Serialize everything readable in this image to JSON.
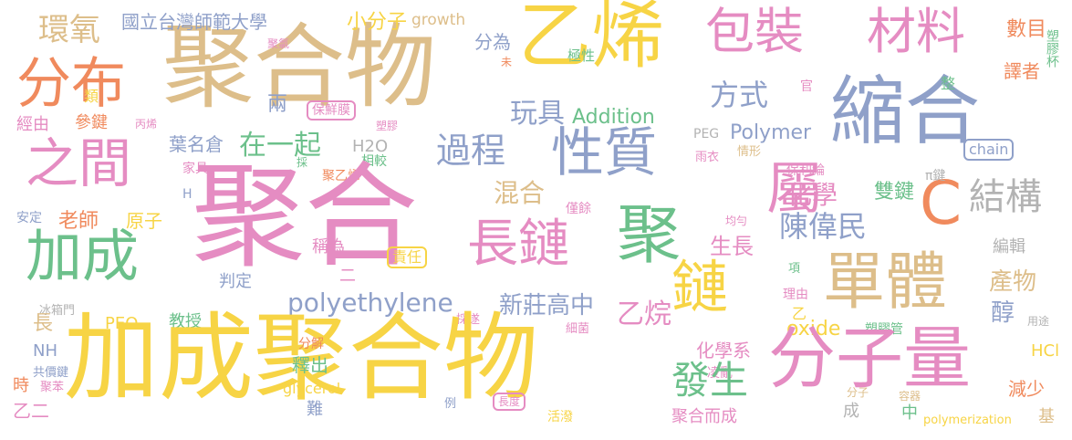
{
  "palette": {
    "yellow": "#F7D445",
    "pink": "#E58CC2",
    "tan": "#DDBE8A",
    "blue": "#8FA0C9",
    "green": "#6CC08B",
    "orange": "#F08A5D",
    "gray": "#B3B3B3"
  },
  "words": [
    {
      "text": "聚合物",
      "color": "tan"
    },
    {
      "text": "乙烯",
      "color": "yellow"
    },
    {
      "text": "包裝",
      "color": "pink"
    },
    {
      "text": "材料",
      "color": "pink"
    },
    {
      "text": "縮合",
      "color": "blue"
    },
    {
      "text": "分布",
      "color": "orange"
    },
    {
      "text": "環氧",
      "color": "tan"
    },
    {
      "text": "國立台灣師範大學",
      "color": "blue"
    },
    {
      "text": "小分子",
      "color": "yellow"
    },
    {
      "text": "growth",
      "color": "tan"
    },
    {
      "text": "分為",
      "color": "blue"
    },
    {
      "text": "數目",
      "color": "orange"
    },
    {
      "text": "塑膠杯",
      "color": "green"
    },
    {
      "text": "譯者",
      "color": "orange"
    },
    {
      "text": "聚氯",
      "color": "pink"
    },
    {
      "text": "未",
      "color": "orange"
    },
    {
      "text": "極性",
      "color": "green"
    },
    {
      "text": "方式",
      "color": "blue"
    },
    {
      "text": "玩具",
      "color": "blue"
    },
    {
      "text": "Addition",
      "color": "green"
    },
    {
      "text": "官",
      "color": "pink"
    },
    {
      "text": "整",
      "color": "green"
    },
    {
      "text": "類",
      "color": "yellow"
    },
    {
      "text": "兩",
      "color": "blue"
    },
    {
      "text": "保鮮膜",
      "color": "pink"
    },
    {
      "text": "經由",
      "color": "pink"
    },
    {
      "text": "參鍵",
      "color": "orange"
    },
    {
      "text": "丙烯",
      "color": "pink"
    },
    {
      "text": "塑膠",
      "color": "pink"
    },
    {
      "text": "之間",
      "color": "pink"
    },
    {
      "text": "過程",
      "color": "blue"
    },
    {
      "text": "性質",
      "color": "blue"
    },
    {
      "text": "Polymer",
      "color": "blue"
    },
    {
      "text": "葉名倉",
      "color": "blue"
    },
    {
      "text": "在一起",
      "color": "green"
    },
    {
      "text": "H2O",
      "color": "gray"
    },
    {
      "text": "PEG",
      "color": "gray"
    },
    {
      "text": "chain",
      "color": "blue"
    },
    {
      "text": "家具",
      "color": "pink"
    },
    {
      "text": "採",
      "color": "green"
    },
    {
      "text": "相較",
      "color": "green"
    },
    {
      "text": "雨衣",
      "color": "pink"
    },
    {
      "text": "情形",
      "color": "tan"
    },
    {
      "text": "保利綸",
      "color": "pink"
    },
    {
      "text": "聚乙烯",
      "color": "orange"
    },
    {
      "text": "屬",
      "color": "pink"
    },
    {
      "text": "C",
      "color": "orange"
    },
    {
      "text": "π鍵",
      "color": "gray"
    },
    {
      "text": "結構",
      "color": "gray"
    },
    {
      "text": "H",
      "color": "blue"
    },
    {
      "text": "混合",
      "color": "tan"
    },
    {
      "text": "化學",
      "color": "pink"
    },
    {
      "text": "雙鍵",
      "color": "green"
    },
    {
      "text": "安定",
      "color": "blue"
    },
    {
      "text": "僅餘",
      "color": "pink"
    },
    {
      "text": "老師",
      "color": "orange"
    },
    {
      "text": "原子",
      "color": "yellow"
    },
    {
      "text": "聚合",
      "color": "pink"
    },
    {
      "text": "均勻",
      "color": "pink"
    },
    {
      "text": "加成",
      "color": "green"
    },
    {
      "text": "長鏈",
      "color": "pink"
    },
    {
      "text": "聚",
      "color": "green"
    },
    {
      "text": "陳偉民",
      "color": "blue"
    },
    {
      "text": "生長",
      "color": "pink"
    },
    {
      "text": "稱為",
      "color": "pink"
    },
    {
      "text": "責任",
      "color": "yellow"
    },
    {
      "text": "二",
      "color": "pink"
    },
    {
      "text": "鏈",
      "color": "yellow"
    },
    {
      "text": "單體",
      "color": "tan"
    },
    {
      "text": "編輯",
      "color": "gray"
    },
    {
      "text": "項",
      "color": "green"
    },
    {
      "text": "產物",
      "color": "tan"
    },
    {
      "text": "判定",
      "color": "blue"
    },
    {
      "text": "polyethylene",
      "color": "blue"
    },
    {
      "text": "新莊高中",
      "color": "blue"
    },
    {
      "text": "理由",
      "color": "pink"
    },
    {
      "text": "醇",
      "color": "blue"
    },
    {
      "text": "冰箱門",
      "color": "gray"
    },
    {
      "text": "教授",
      "color": "green"
    },
    {
      "text": "PEO",
      "color": "yellow"
    },
    {
      "text": "乙烷",
      "color": "pink"
    },
    {
      "text": "長",
      "color": "tan"
    },
    {
      "text": "乙",
      "color": "yellow"
    },
    {
      "text": "採遂",
      "color": "pink"
    },
    {
      "text": "細菌",
      "color": "pink"
    },
    {
      "text": "oxide",
      "color": "yellow"
    },
    {
      "text": "塑膠管",
      "color": "green"
    },
    {
      "text": "用途",
      "color": "gray"
    },
    {
      "text": "NH",
      "color": "blue"
    },
    {
      "text": "加成聚合物",
      "color": "yellow"
    },
    {
      "text": "分子量",
      "color": "pink"
    },
    {
      "text": "分解",
      "color": "orange"
    },
    {
      "text": "化學系",
      "color": "pink"
    },
    {
      "text": "HCl",
      "color": "yellow"
    },
    {
      "text": "共價鍵",
      "color": "blue"
    },
    {
      "text": "釋出",
      "color": "green"
    },
    {
      "text": "凌亂",
      "color": "pink"
    },
    {
      "text": "發生",
      "color": "green"
    },
    {
      "text": "時",
      "color": "orange"
    },
    {
      "text": "聚苯",
      "color": "pink"
    },
    {
      "text": "glycerol",
      "color": "yellow"
    },
    {
      "text": "分子",
      "color": "tan"
    },
    {
      "text": "容器",
      "color": "tan"
    },
    {
      "text": "減少",
      "color": "orange"
    },
    {
      "text": "乙二",
      "color": "pink"
    },
    {
      "text": "難",
      "color": "blue"
    },
    {
      "text": "例",
      "color": "blue"
    },
    {
      "text": "長度",
      "color": "pink"
    },
    {
      "text": "成",
      "color": "gray"
    },
    {
      "text": "中",
      "color": "green"
    },
    {
      "text": "基",
      "color": "tan"
    },
    {
      "text": "活潑",
      "color": "yellow"
    },
    {
      "text": "聚合而成",
      "color": "pink"
    },
    {
      "text": "polymerization",
      "color": "yellow"
    }
  ]
}
